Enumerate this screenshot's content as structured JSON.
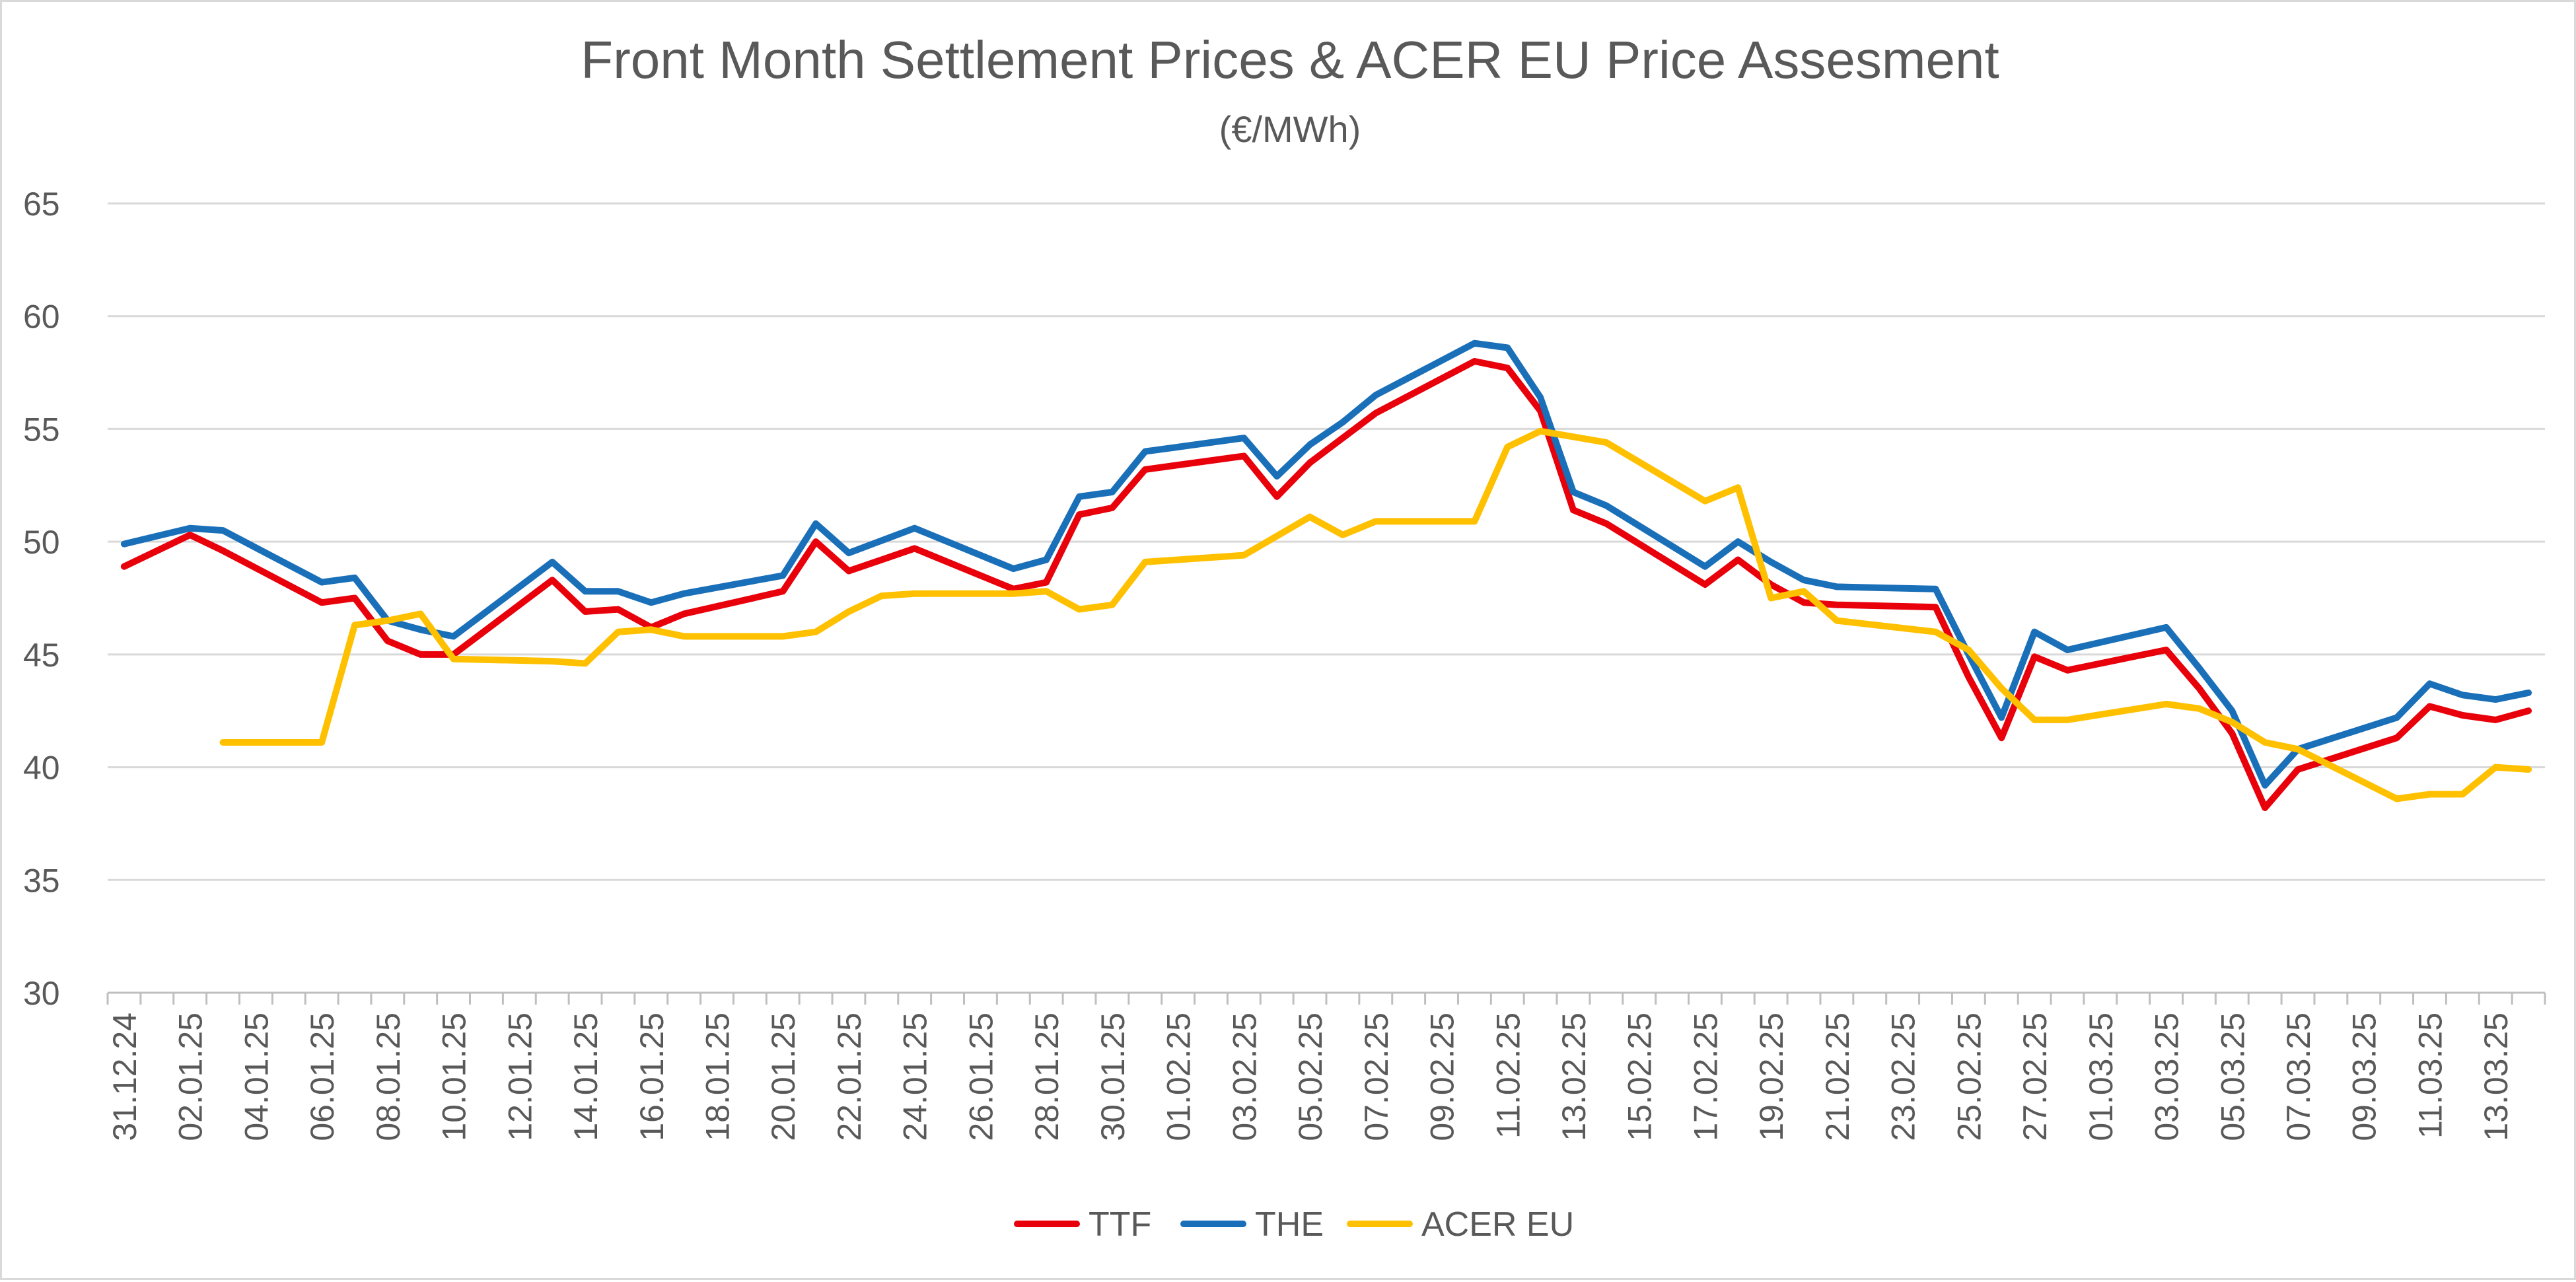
{
  "chart_data": {
    "type": "line",
    "title": "Front Month Settlement Prices & ACER EU Price Assesment",
    "subtitle": "(€/MWh)",
    "xlabel": "",
    "ylabel": "",
    "ylim": [
      30,
      65
    ],
    "yticks": [
      30,
      35,
      40,
      45,
      50,
      55,
      60,
      65
    ],
    "grid": true,
    "legend_position": "bottom",
    "x_dates": [
      "31.12.24",
      "01.01.25",
      "02.01.25",
      "03.01.25",
      "04.01.25",
      "05.01.25",
      "06.01.25",
      "07.01.25",
      "08.01.25",
      "09.01.25",
      "10.01.25",
      "11.01.25",
      "12.01.25",
      "13.01.25",
      "14.01.25",
      "15.01.25",
      "16.01.25",
      "17.01.25",
      "18.01.25",
      "19.01.25",
      "20.01.25",
      "21.01.25",
      "22.01.25",
      "23.01.25",
      "24.01.25",
      "25.01.25",
      "26.01.25",
      "27.01.25",
      "28.01.25",
      "29.01.25",
      "30.01.25",
      "31.01.25",
      "01.02.25",
      "02.02.25",
      "03.02.25",
      "04.02.25",
      "05.02.25",
      "06.02.25",
      "07.02.25",
      "08.02.25",
      "09.02.25",
      "10.02.25",
      "11.02.25",
      "12.02.25",
      "13.02.25",
      "14.02.25",
      "15.02.25",
      "16.02.25",
      "17.02.25",
      "18.02.25",
      "19.02.25",
      "20.02.25",
      "21.02.25",
      "22.02.25",
      "23.02.25",
      "24.02.25",
      "25.02.25",
      "26.02.25",
      "27.02.25",
      "28.02.25",
      "01.03.25",
      "02.03.25",
      "03.03.25",
      "04.03.25",
      "05.03.25",
      "06.03.25",
      "07.03.25",
      "08.03.25",
      "09.03.25",
      "10.03.25",
      "11.03.25",
      "12.03.25",
      "13.03.25",
      "14.03.25"
    ],
    "x_tick_labels": [
      "31.12.24",
      "02.01.25",
      "04.01.25",
      "06.01.25",
      "08.01.25",
      "10.01.25",
      "12.01.25",
      "14.01.25",
      "16.01.25",
      "18.01.25",
      "20.01.25",
      "22.01.25",
      "24.01.25",
      "26.01.25",
      "28.01.25",
      "30.01.25",
      "01.02.25",
      "03.02.25",
      "05.02.25",
      "07.02.25",
      "09.02.25",
      "11.02.25",
      "13.02.25",
      "15.02.25",
      "17.02.25",
      "19.02.25",
      "21.02.25",
      "23.02.25",
      "25.02.25",
      "27.02.25",
      "01.03.25",
      "03.03.25",
      "05.03.25",
      "07.03.25",
      "09.03.25",
      "11.03.25",
      "13.03.25"
    ],
    "series": [
      {
        "name": "TTF",
        "color": "#e8000b",
        "points": [
          [
            "31.12.24",
            48.9
          ],
          [
            "02.01.25",
            50.3
          ],
          [
            "03.01.25",
            49.6
          ],
          [
            "06.01.25",
            47.3
          ],
          [
            "07.01.25",
            47.5
          ],
          [
            "08.01.25",
            45.6
          ],
          [
            "09.01.25",
            45.0
          ],
          [
            "10.01.25",
            45.0
          ],
          [
            "13.01.25",
            48.3
          ],
          [
            "14.01.25",
            46.9
          ],
          [
            "15.01.25",
            47.0
          ],
          [
            "16.01.25",
            46.2
          ],
          [
            "17.01.25",
            46.8
          ],
          [
            "20.01.25",
            47.8
          ],
          [
            "21.01.25",
            50.0
          ],
          [
            "22.01.25",
            48.7
          ],
          [
            "23.01.25",
            49.2
          ],
          [
            "24.01.25",
            49.7
          ],
          [
            "27.01.25",
            47.9
          ],
          [
            "28.01.25",
            48.2
          ],
          [
            "29.01.25",
            51.2
          ],
          [
            "30.01.25",
            51.5
          ],
          [
            "31.01.25",
            53.2
          ],
          [
            "03.02.25",
            53.8
          ],
          [
            "04.02.25",
            52.0
          ],
          [
            "05.02.25",
            53.5
          ],
          [
            "06.02.25",
            54.6
          ],
          [
            "07.02.25",
            55.7
          ],
          [
            "10.02.25",
            58.0
          ],
          [
            "11.02.25",
            57.7
          ],
          [
            "12.02.25",
            55.8
          ],
          [
            "13.02.25",
            51.4
          ],
          [
            "14.02.25",
            50.8
          ],
          [
            "17.02.25",
            48.1
          ],
          [
            "18.02.25",
            49.2
          ],
          [
            "19.02.25",
            48.1
          ],
          [
            "20.02.25",
            47.3
          ],
          [
            "21.02.25",
            47.2
          ],
          [
            "24.02.25",
            47.1
          ],
          [
            "25.02.25",
            44.0
          ],
          [
            "26.02.25",
            41.3
          ],
          [
            "27.02.25",
            44.9
          ],
          [
            "28.02.25",
            44.3
          ],
          [
            "03.03.25",
            45.2
          ],
          [
            "04.03.25",
            43.5
          ],
          [
            "05.03.25",
            41.5
          ],
          [
            "06.03.25",
            38.2
          ],
          [
            "07.03.25",
            39.9
          ],
          [
            "10.03.25",
            41.3
          ],
          [
            "11.03.25",
            42.7
          ],
          [
            "12.03.25",
            42.3
          ],
          [
            "13.03.25",
            42.1
          ],
          [
            "14.03.25",
            42.5
          ]
        ]
      },
      {
        "name": "THE",
        "color": "#1a6fb9",
        "points": [
          [
            "31.12.24",
            49.9
          ],
          [
            "02.01.25",
            50.6
          ],
          [
            "03.01.25",
            50.5
          ],
          [
            "06.01.25",
            48.2
          ],
          [
            "07.01.25",
            48.4
          ],
          [
            "08.01.25",
            46.5
          ],
          [
            "09.01.25",
            46.1
          ],
          [
            "10.01.25",
            45.8
          ],
          [
            "13.01.25",
            49.1
          ],
          [
            "14.01.25",
            47.8
          ],
          [
            "15.01.25",
            47.8
          ],
          [
            "16.01.25",
            47.3
          ],
          [
            "17.01.25",
            47.7
          ],
          [
            "20.01.25",
            48.5
          ],
          [
            "21.01.25",
            50.8
          ],
          [
            "22.01.25",
            49.5
          ],
          [
            "24.01.25",
            50.6
          ],
          [
            "27.01.25",
            48.8
          ],
          [
            "28.01.25",
            49.2
          ],
          [
            "29.01.25",
            52.0
          ],
          [
            "30.01.25",
            52.2
          ],
          [
            "31.01.25",
            54.0
          ],
          [
            "03.02.25",
            54.6
          ],
          [
            "04.02.25",
            52.9
          ],
          [
            "05.02.25",
            54.3
          ],
          [
            "06.02.25",
            55.3
          ],
          [
            "07.02.25",
            56.5
          ],
          [
            "10.02.25",
            58.8
          ],
          [
            "11.02.25",
            58.6
          ],
          [
            "12.02.25",
            56.4
          ],
          [
            "13.02.25",
            52.2
          ],
          [
            "14.02.25",
            51.6
          ],
          [
            "17.02.25",
            48.9
          ],
          [
            "18.02.25",
            50.0
          ],
          [
            "19.02.25",
            49.1
          ],
          [
            "20.02.25",
            48.3
          ],
          [
            "21.02.25",
            48.0
          ],
          [
            "24.02.25",
            47.9
          ],
          [
            "25.02.25",
            45.0
          ],
          [
            "26.02.25",
            42.2
          ],
          [
            "27.02.25",
            46.0
          ],
          [
            "28.02.25",
            45.2
          ],
          [
            "03.03.25",
            46.2
          ],
          [
            "04.03.25",
            44.4
          ],
          [
            "05.03.25",
            42.5
          ],
          [
            "06.03.25",
            39.2
          ],
          [
            "07.03.25",
            40.8
          ],
          [
            "10.03.25",
            42.2
          ],
          [
            "11.03.25",
            43.7
          ],
          [
            "12.03.25",
            43.2
          ],
          [
            "13.03.25",
            43.0
          ],
          [
            "14.03.25",
            43.3
          ]
        ]
      },
      {
        "name": "ACER EU",
        "color": "#ffc000",
        "points": [
          [
            "03.01.25",
            41.1
          ],
          [
            "06.01.25",
            41.1
          ],
          [
            "07.01.25",
            46.3
          ],
          [
            "08.01.25",
            46.5
          ],
          [
            "09.01.25",
            46.8
          ],
          [
            "10.01.25",
            44.8
          ],
          [
            "13.01.25",
            44.7
          ],
          [
            "14.01.25",
            44.6
          ],
          [
            "15.01.25",
            46.0
          ],
          [
            "16.01.25",
            46.1
          ],
          [
            "17.01.25",
            45.8
          ],
          [
            "20.01.25",
            45.8
          ],
          [
            "21.01.25",
            46.0
          ],
          [
            "22.01.25",
            46.9
          ],
          [
            "23.01.25",
            47.6
          ],
          [
            "24.01.25",
            47.7
          ],
          [
            "27.01.25",
            47.7
          ],
          [
            "28.01.25",
            47.8
          ],
          [
            "29.01.25",
            47.0
          ],
          [
            "30.01.25",
            47.2
          ],
          [
            "31.01.25",
            49.1
          ],
          [
            "03.02.25",
            49.4
          ],
          [
            "05.02.25",
            51.1
          ],
          [
            "06.02.25",
            50.3
          ],
          [
            "07.02.25",
            50.9
          ],
          [
            "10.02.25",
            50.9
          ],
          [
            "11.02.25",
            54.2
          ],
          [
            "12.02.25",
            54.9
          ],
          [
            "14.02.25",
            54.4
          ],
          [
            "17.02.25",
            51.8
          ],
          [
            "18.02.25",
            52.4
          ],
          [
            "19.02.25",
            47.5
          ],
          [
            "20.02.25",
            47.8
          ],
          [
            "21.02.25",
            46.5
          ],
          [
            "24.02.25",
            46.0
          ],
          [
            "25.02.25",
            45.2
          ],
          [
            "26.02.25",
            43.5
          ],
          [
            "27.02.25",
            42.1
          ],
          [
            "28.02.25",
            42.1
          ],
          [
            "03.03.25",
            42.8
          ],
          [
            "04.03.25",
            42.6
          ],
          [
            "05.03.25",
            42.0
          ],
          [
            "06.03.25",
            41.1
          ],
          [
            "07.03.25",
            40.8
          ],
          [
            "10.03.25",
            38.6
          ],
          [
            "11.03.25",
            38.8
          ],
          [
            "12.03.25",
            38.8
          ],
          [
            "13.03.25",
            40.0
          ],
          [
            "14.03.25",
            39.9
          ]
        ]
      }
    ]
  }
}
